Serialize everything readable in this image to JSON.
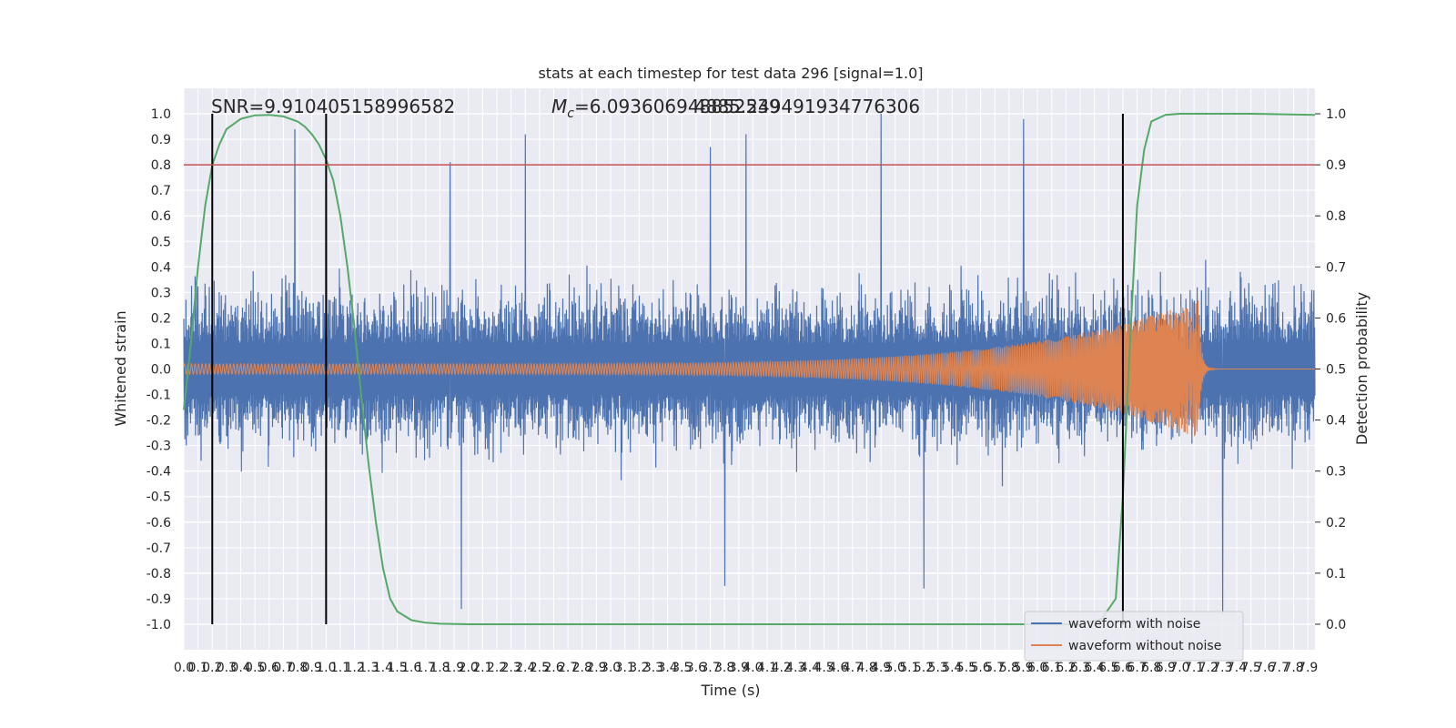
{
  "chart_data": {
    "type": "line",
    "title": "stats at each timestep for test data 296 [signal=1.0]",
    "xlabel": "Time (s)",
    "ylabel": "Whitened strain",
    "y2label": "Detection probability",
    "xlim": [
      0.0,
      7.95
    ],
    "ylim": [
      -1.1,
      1.1
    ],
    "y2lim": [
      -0.05,
      1.05
    ],
    "grid": true,
    "legend_position": "bottom-right",
    "x_ticks": [
      "0.0",
      "0.1",
      "0.2",
      "0.3",
      "0.4",
      "0.5",
      "0.6",
      "0.7",
      "0.8",
      "0.9",
      "1.0",
      "1.1",
      "1.2",
      "1.3",
      "1.4",
      "1.5",
      "1.6",
      "1.7",
      "1.8",
      "1.9",
      "2.0",
      "2.1",
      "2.2",
      "2.3",
      "2.4",
      "2.5",
      "2.6",
      "2.7",
      "2.8",
      "2.9",
      "3.0",
      "3.1",
      "3.2",
      "3.3",
      "3.4",
      "3.5",
      "3.6",
      "3.7",
      "3.8",
      "3.9",
      "4.0",
      "4.1",
      "4.2",
      "4.3",
      "4.4",
      "4.5",
      "4.6",
      "4.7",
      "4.8",
      "4.9",
      "5.0",
      "5.1",
      "5.2",
      "5.3",
      "5.4",
      "5.5",
      "5.6",
      "5.7",
      "5.8",
      "5.9",
      "6.0",
      "6.1",
      "6.2",
      "6.3",
      "6.4",
      "6.5",
      "6.6",
      "6.7",
      "6.8",
      "6.9",
      "7.0",
      "7.1",
      "7.2",
      "7.3",
      "7.4",
      "7.5",
      "7.6",
      "7.7",
      "7.8",
      "7.9"
    ],
    "y_ticks": [
      "1.0",
      "0.9",
      "0.8",
      "0.7",
      "0.6",
      "0.5",
      "0.4",
      "0.3",
      "0.2",
      "0.1",
      "0.0",
      "-0.1",
      "-0.2",
      "-0.3",
      "-0.4",
      "-0.5",
      "-0.6",
      "-0.7",
      "-0.8",
      "-0.9",
      "-1.0"
    ],
    "y2_ticks": [
      "1.0",
      "0.9",
      "0.8",
      "0.7",
      "0.6",
      "0.5",
      "0.4",
      "0.3",
      "0.2",
      "0.1",
      "0.0"
    ],
    "annotations": {
      "snr": "SNR=9.910405158996582",
      "mc": "M_c=6.093606948852539",
      "mc_overlap": "4885.249491934776306"
    },
    "threshold": {
      "y2": 0.9,
      "color": "#c44e52"
    },
    "vlines_x": [
      0.2,
      1.0,
      6.6
    ],
    "series": [
      {
        "name": "waveform with noise",
        "color": "#4c72b0",
        "axis": "left",
        "amplitude_envelope": 0.45,
        "spike_peaks": [
          {
            "x": 0.78,
            "y": 0.94
          },
          {
            "x": 1.0,
            "y": 0.86
          },
          {
            "x": 1.87,
            "y": 0.81
          },
          {
            "x": 2.4,
            "y": 0.92
          },
          {
            "x": 3.7,
            "y": 0.87
          },
          {
            "x": 3.95,
            "y": 0.92
          },
          {
            "x": 4.9,
            "y": 1.0
          },
          {
            "x": 5.9,
            "y": 0.98
          },
          {
            "x": 1.95,
            "y": -0.94
          },
          {
            "x": 3.8,
            "y": -0.85
          },
          {
            "x": 5.2,
            "y": -0.86
          },
          {
            "x": 7.3,
            "y": -0.96
          }
        ]
      },
      {
        "name": "waveform without noise",
        "color": "#dd8452",
        "axis": "left",
        "chirp": {
          "start_amp": 0.02,
          "peak_amp": 0.27,
          "merger_x": 7.13,
          "end_x": 7.95
        }
      },
      {
        "name": "",
        "color": "#55a868",
        "axis": "right",
        "x": [
          0.0,
          0.05,
          0.1,
          0.15,
          0.2,
          0.25,
          0.3,
          0.4,
          0.5,
          0.6,
          0.7,
          0.8,
          0.85,
          0.9,
          0.95,
          1.0,
          1.05,
          1.1,
          1.15,
          1.2,
          1.25,
          1.3,
          1.35,
          1.4,
          1.45,
          1.5,
          1.6,
          1.7,
          1.8,
          2.0,
          3.0,
          4.0,
          5.0,
          6.0,
          6.3,
          6.45,
          6.55,
          6.6,
          6.65,
          6.7,
          6.75,
          6.8,
          6.9,
          7.0,
          7.5,
          7.95
        ],
        "y": [
          0.42,
          0.55,
          0.7,
          0.82,
          0.9,
          0.94,
          0.97,
          0.99,
          0.997,
          0.998,
          0.995,
          0.985,
          0.975,
          0.96,
          0.94,
          0.91,
          0.87,
          0.8,
          0.7,
          0.58,
          0.44,
          0.31,
          0.2,
          0.11,
          0.05,
          0.025,
          0.008,
          0.003,
          0.001,
          0.0,
          0.0,
          0.0,
          0.0,
          0.0,
          0.0,
          0.01,
          0.05,
          0.25,
          0.55,
          0.82,
          0.93,
          0.985,
          0.998,
          1.0,
          1.0,
          0.998
        ]
      }
    ]
  }
}
